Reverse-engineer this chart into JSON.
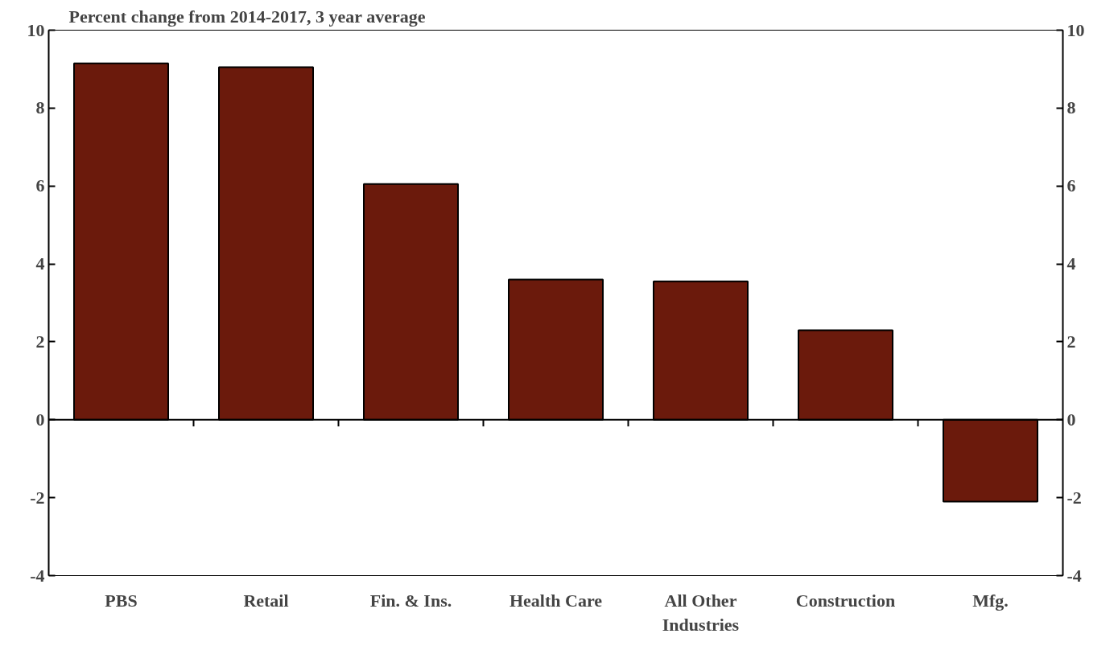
{
  "chart_data": {
    "type": "bar",
    "title": "Percent change from 2014-2017, 3 year average",
    "categories": [
      "PBS",
      "Retail",
      "Fin. & Ins.",
      "Health Care",
      "All Other Industries",
      "Construction",
      "Mfg."
    ],
    "values": [
      9.15,
      9.05,
      6.05,
      3.6,
      3.55,
      2.3,
      -2.1
    ],
    "color": "#6b1a0c",
    "ylim": [
      -4,
      10
    ],
    "yticks": [
      -4,
      -2,
      0,
      2,
      4,
      6,
      8,
      10
    ],
    "y2lim": [
      -4,
      10
    ],
    "y2ticks": [
      -4,
      -2,
      0,
      2,
      4,
      6,
      8,
      10
    ]
  }
}
